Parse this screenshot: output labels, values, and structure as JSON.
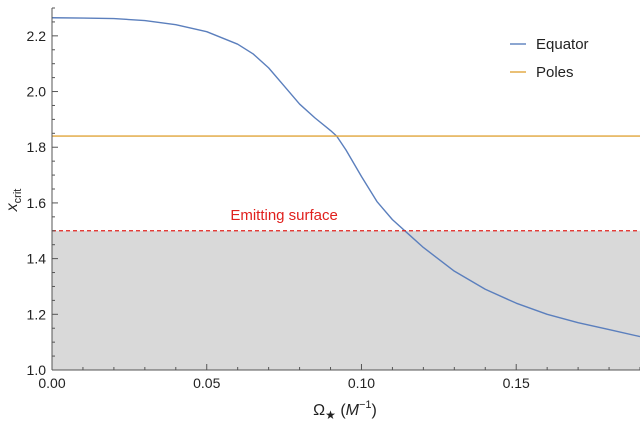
{
  "chart_data": {
    "type": "line",
    "title": "",
    "xlabel": {
      "main": "Ω",
      "sub": "★",
      "unit_open": " (",
      "unit_var": "M",
      "unit_sup": "−1",
      "unit_close": ")"
    },
    "ylabel": {
      "main": "x",
      "sub": "crit"
    },
    "xlim": [
      0.0,
      0.19
    ],
    "ylim": [
      1.0,
      2.3
    ],
    "x_ticks": [
      0.0,
      0.05,
      0.1,
      0.15
    ],
    "x_tick_labels": [
      "0.00",
      "0.05",
      "0.10",
      "0.15"
    ],
    "y_ticks": [
      1.0,
      1.2,
      1.4,
      1.6,
      1.8,
      2.0,
      2.2
    ],
    "y_tick_labels": [
      "1.0",
      "1.2",
      "1.4",
      "1.6",
      "1.8",
      "2.0",
      "2.2"
    ],
    "legend_position": "top-right",
    "series": [
      {
        "name": "Equator",
        "color": "#5b7fbd",
        "x": [
          0.0,
          0.01,
          0.02,
          0.03,
          0.04,
          0.05,
          0.06,
          0.065,
          0.07,
          0.075,
          0.08,
          0.085,
          0.09,
          0.092,
          0.095,
          0.1,
          0.105,
          0.11,
          0.115,
          0.12,
          0.13,
          0.14,
          0.15,
          0.16,
          0.17,
          0.18,
          0.19
        ],
        "y": [
          2.265,
          2.264,
          2.262,
          2.255,
          2.24,
          2.215,
          2.17,
          2.135,
          2.085,
          2.02,
          1.955,
          1.905,
          1.86,
          1.84,
          1.79,
          1.695,
          1.605,
          1.54,
          1.49,
          1.44,
          1.355,
          1.29,
          1.24,
          1.2,
          1.17,
          1.145,
          1.12
        ]
      },
      {
        "name": "Poles",
        "color": "#e1a53a",
        "x": [
          0.0,
          0.19
        ],
        "y": [
          1.84,
          1.84
        ]
      }
    ],
    "annotations": [
      {
        "type": "hline",
        "y": 1.5,
        "style": "dashed",
        "color": "#e0201d",
        "label": "Emitting surface"
      },
      {
        "type": "shaded_region",
        "y_from": 1.0,
        "y_to": 1.5,
        "color": "#d9d9d9"
      }
    ]
  }
}
